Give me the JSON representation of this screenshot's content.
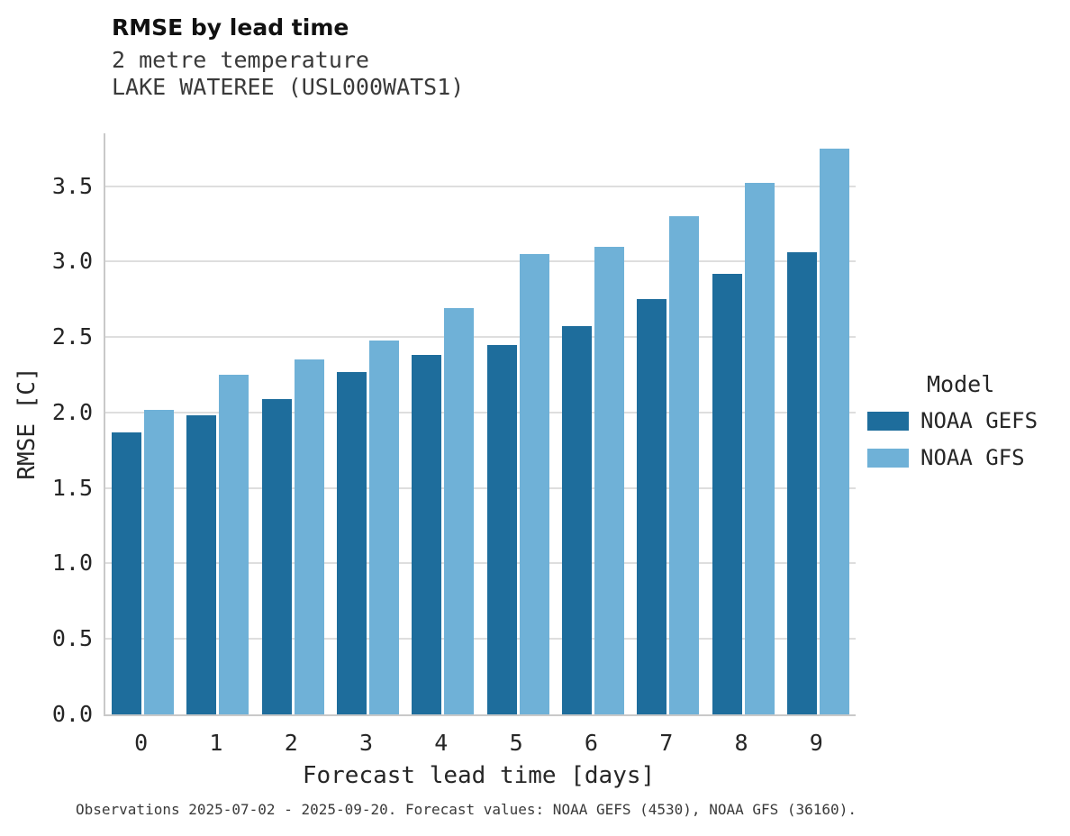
{
  "chart_data": {
    "type": "bar",
    "title": "RMSE by lead time",
    "subtitle1": "2 metre temperature",
    "subtitle2": "LAKE WATEREE (USL000WATS1)",
    "xlabel": "Forecast lead time [days]",
    "ylabel": "RMSE [C]",
    "categories": [
      0,
      1,
      2,
      3,
      4,
      5,
      6,
      7,
      8,
      9
    ],
    "series": [
      {
        "name": "NOAA GEFS",
        "color": "#1e6d9c",
        "values": [
          1.87,
          1.98,
          2.09,
          2.27,
          2.38,
          2.45,
          2.57,
          2.75,
          2.92,
          3.06
        ]
      },
      {
        "name": "NOAA GFS",
        "color": "#6fb1d7",
        "values": [
          2.02,
          2.25,
          2.35,
          2.48,
          2.69,
          3.05,
          3.1,
          3.3,
          3.52,
          3.75
        ]
      }
    ],
    "ylim": [
      0,
      3.85
    ],
    "yticks": [
      0.0,
      0.5,
      1.0,
      1.5,
      2.0,
      2.5,
      3.0,
      3.5
    ],
    "grid": true,
    "legend_title": "Model",
    "legend_position": "right"
  },
  "legend": {
    "title": "Model",
    "items": [
      {
        "label": "NOAA GEFS",
        "color": "#1e6d9c"
      },
      {
        "label": "NOAA GFS",
        "color": "#6fb1d7"
      }
    ]
  },
  "footer": {
    "caption": "Observations 2025-07-02 - 2025-09-20. Forecast values: NOAA GEFS (4530), NOAA GFS (36160)."
  }
}
